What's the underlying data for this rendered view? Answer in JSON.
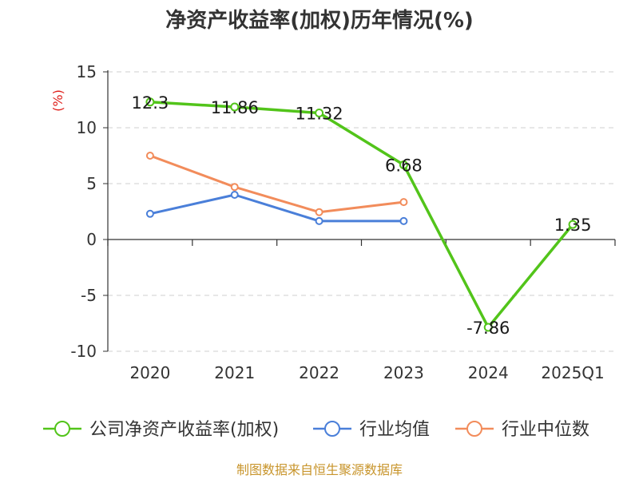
{
  "colors": {
    "company": "#52c41a",
    "industry_avg": "#4a7fd9",
    "industry_median": "#f28c5b",
    "unit": "#e0201b",
    "source": "#c8952c"
  },
  "chart_data": {
    "type": "line",
    "title": "净资产收益率(加权)历年情况(%)",
    "ylabel": "(%)",
    "xlabel": "",
    "categories": [
      "2020",
      "2021",
      "2022",
      "2023",
      "2024",
      "2025Q1"
    ],
    "ylim": [
      -10,
      15
    ],
    "yticks": [
      "15",
      "10",
      "5",
      "0",
      "-5",
      "-10"
    ],
    "grid": true,
    "legend_position": "bottom",
    "series": [
      {
        "name": "公司净资产收益率(加权)",
        "values": [
          12.3,
          11.86,
          11.32,
          6.68,
          -7.86,
          1.35
        ],
        "labels": [
          "12.3",
          "11.86",
          "11.32",
          "6.68",
          "-7.86",
          "1.35"
        ]
      },
      {
        "name": "行业均值",
        "values": [
          2.3,
          4.0,
          1.65,
          1.65,
          null,
          null
        ]
      },
      {
        "name": "行业中位数",
        "values": [
          7.5,
          4.7,
          2.45,
          3.35,
          null,
          null
        ]
      }
    ]
  },
  "source": "制图数据来自恒生聚源数据库"
}
